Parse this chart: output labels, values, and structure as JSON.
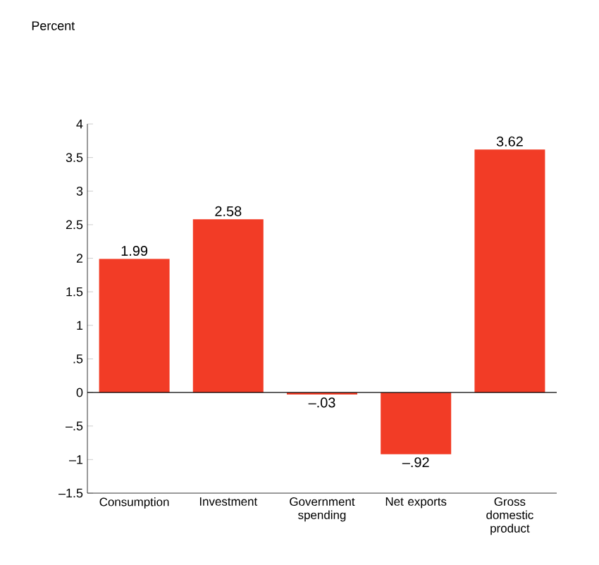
{
  "chart_data": {
    "type": "bar",
    "annotations": [
      "Percent"
    ],
    "categories": [
      "Consumption",
      "Investment",
      "Government spending",
      "Net exports",
      "Gross domestic product"
    ],
    "values": [
      1.99,
      2.58,
      -0.03,
      -0.92,
      3.62
    ],
    "value_labels": [
      "1.99",
      "2.58",
      "–.03",
      "–.92",
      "3.62"
    ],
    "color": "#f23c26",
    "ylim": [
      -1.5,
      4
    ],
    "yticks": [
      {
        "value": -1.5,
        "label": "–1.5"
      },
      {
        "value": -1,
        "label": "–1"
      },
      {
        "value": -0.5,
        "label": "–.5"
      },
      0,
      {
        "value": 0.5,
        "label": ".5"
      },
      1,
      1.5,
      2,
      2.5,
      3,
      3.5,
      4
    ],
    "ref_lines": [
      {
        "axis": "y",
        "value": 0
      }
    ]
  }
}
